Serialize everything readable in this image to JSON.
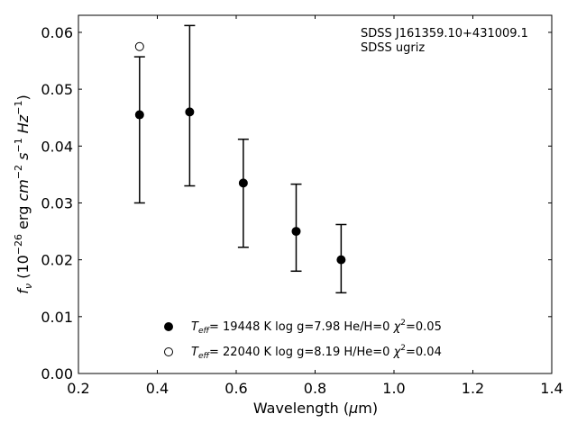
{
  "chart_data": {
    "type": "scatter",
    "annotation": [
      "SDSS J161359.10+431009.1",
      "SDSS ugriz"
    ],
    "xlabel": "Wavelength (µm)",
    "ylabel": "f_ν (10^−26 erg cm^−2 s^−1 Hz^−1)",
    "xlim": [
      0.2,
      1.4
    ],
    "ylim": [
      0.0,
      0.063
    ],
    "x_ticks": [
      0.2,
      0.4,
      0.6,
      0.8,
      1.0,
      1.2,
      1.4
    ],
    "x_tick_labels": [
      "0.2",
      "0.4",
      "0.6",
      "0.8",
      "1.0",
      "1.2",
      "1.4"
    ],
    "y_ticks": [
      0.0,
      0.01,
      0.02,
      0.03,
      0.04,
      0.05,
      0.06
    ],
    "y_tick_labels": [
      "0.00",
      "0.01",
      "0.02",
      "0.03",
      "0.04",
      "0.05",
      "0.06"
    ],
    "grid": false,
    "legend_position": "bottom-center",
    "series": [
      {
        "name": "T_eff= 19448 K  log g=7.98  He/H=0  χ²=0.05",
        "marker": "filled-circle",
        "x": [
          0.355,
          0.482,
          0.618,
          0.752,
          0.866
        ],
        "y": [
          0.0455,
          0.046,
          0.0335,
          0.025,
          0.02
        ],
        "yerr_low": [
          0.03,
          0.033,
          0.0222,
          0.018,
          0.0142
        ],
        "yerr_high": [
          0.0557,
          0.0612,
          0.0412,
          0.0333,
          0.0262
        ]
      },
      {
        "name": "T_eff= 22040 K  log g=8.19  H/He=0  χ²=0.04",
        "marker": "open-circle",
        "x": [
          0.355
        ],
        "y": [
          0.0575
        ]
      }
    ],
    "legend": [
      {
        "marker": "filled-circle",
        "teff_value": "= 19448 K  log g=7.98  He/H=0  ",
        "chi_value": "=0.05"
      },
      {
        "marker": "open-circle",
        "teff_value": "= 22040 K  log g=8.19  H/He=0  ",
        "chi_value": "=0.04"
      }
    ]
  }
}
